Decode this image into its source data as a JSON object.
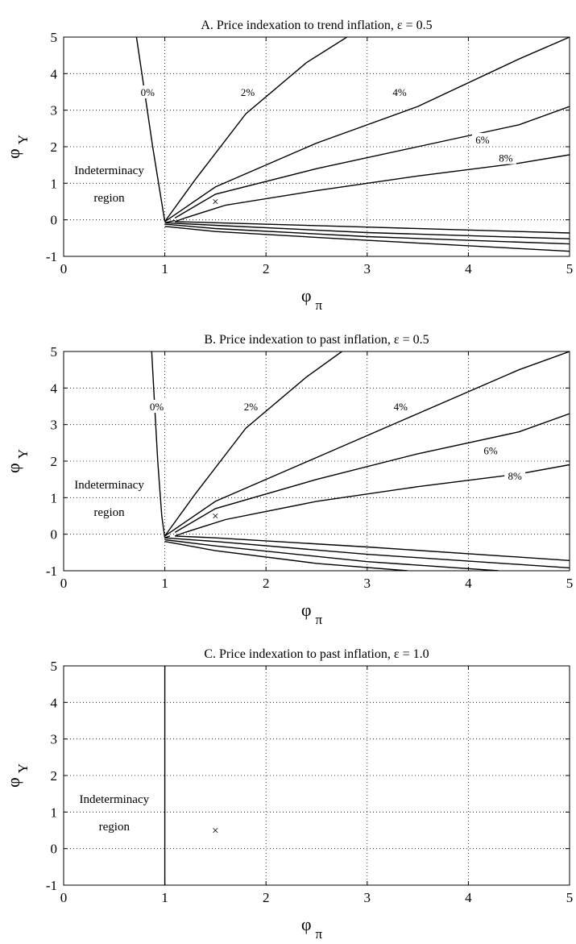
{
  "chart_data": [
    {
      "type": "line",
      "title": "A. Price indexation to trend inflation, ε = 0.5",
      "xlabel": "φ",
      "xlabel_sub": "π",
      "ylabel": "φ",
      "ylabel_sub": "Y",
      "xlim": [
        0,
        5
      ],
      "ylim": [
        -1,
        5
      ],
      "xticks": [
        "0",
        "1",
        "2",
        "3",
        "4",
        "5"
      ],
      "yticks": [
        "-1",
        "0",
        "1",
        "2",
        "3",
        "4",
        "5"
      ],
      "grid": true,
      "region_label": [
        "Indeterminacy",
        "region"
      ],
      "marker": {
        "x": 1.5,
        "y": 0.5,
        "symbol": "×"
      },
      "series": [
        {
          "label": "0%",
          "x": [
            0.72,
            0.8,
            0.88,
            0.95,
            1.0
          ],
          "y": [
            5.0,
            3.5,
            2.0,
            0.8,
            -0.05
          ],
          "label_at": [
            0.83,
            3.5
          ]
        },
        {
          "label": "2%",
          "x": [
            1.0,
            1.3,
            1.8,
            2.4,
            2.8
          ],
          "y": [
            -0.05,
            1.1,
            2.9,
            4.3,
            5.0
          ],
          "label_at": [
            1.82,
            3.5
          ]
        },
        {
          "label": "4%",
          "x": [
            1.0,
            1.5,
            2.5,
            3.5,
            4.5,
            5.0
          ],
          "y": [
            -0.05,
            0.9,
            2.1,
            3.1,
            4.4,
            5.0
          ],
          "label_at": [
            3.32,
            3.5
          ]
        },
        {
          "label": "6%",
          "x": [
            1.1,
            1.5,
            2.5,
            3.5,
            4.5,
            5.0
          ],
          "y": [
            0.05,
            0.7,
            1.4,
            2.0,
            2.6,
            3.1
          ],
          "label_at": [
            4.14,
            2.2
          ]
        },
        {
          "label": "8%",
          "x": [
            1.2,
            1.6,
            2.5,
            3.5,
            4.5,
            5.0
          ],
          "y": [
            0.05,
            0.4,
            0.8,
            1.2,
            1.55,
            1.78
          ],
          "label_at": [
            4.37,
            1.7
          ]
        },
        {
          "label": "",
          "x": [
            1.2,
            1.1,
            1.5,
            3.0,
            5.0
          ],
          "y": [
            0.05,
            -0.05,
            -0.08,
            -0.2,
            -0.36
          ],
          "label_at": null
        },
        {
          "label": "",
          "x": [
            1.1,
            1.0,
            1.5,
            3.0,
            5.0
          ],
          "y": [
            -0.02,
            -0.08,
            -0.15,
            -0.35,
            -0.52
          ],
          "label_at": null
        },
        {
          "label": "",
          "x": [
            1.0,
            1.5,
            3.0,
            5.0
          ],
          "y": [
            -0.12,
            -0.24,
            -0.46,
            -0.66
          ],
          "label_at": null
        },
        {
          "label": "",
          "x": [
            1.0,
            1.5,
            3.0,
            5.0
          ],
          "y": [
            -0.18,
            -0.32,
            -0.56,
            -0.86
          ],
          "label_at": null
        }
      ]
    },
    {
      "type": "line",
      "title": "B. Price indexation to past inflation, ε = 0.5",
      "xlabel": "φ",
      "xlabel_sub": "π",
      "ylabel": "φ",
      "ylabel_sub": "Y",
      "xlim": [
        0,
        5
      ],
      "ylim": [
        -1,
        5
      ],
      "xticks": [
        "0",
        "1",
        "2",
        "3",
        "4",
        "5"
      ],
      "yticks": [
        "-1",
        "0",
        "1",
        "2",
        "3",
        "4",
        "5"
      ],
      "grid": true,
      "region_label": [
        "Indeterminacy",
        "region"
      ],
      "marker": {
        "x": 1.5,
        "y": 0.5,
        "symbol": "×"
      },
      "series": [
        {
          "label": "0%",
          "x": [
            0.87,
            0.9,
            0.93,
            0.97,
            1.0
          ],
          "y": [
            5.0,
            3.5,
            2.0,
            0.5,
            -0.1
          ],
          "label_at": [
            0.92,
            3.5
          ]
        },
        {
          "label": "2%",
          "x": [
            1.0,
            1.3,
            1.8,
            2.4,
            2.75
          ],
          "y": [
            -0.05,
            1.1,
            2.9,
            4.3,
            5.0
          ],
          "label_at": [
            1.85,
            3.5
          ]
        },
        {
          "label": "4%",
          "x": [
            1.0,
            1.5,
            2.5,
            3.5,
            4.5,
            5.0
          ],
          "y": [
            -0.05,
            0.9,
            2.1,
            3.3,
            4.5,
            5.0
          ],
          "label_at": [
            3.33,
            3.5
          ]
        },
        {
          "label": "6%",
          "x": [
            1.1,
            1.5,
            2.5,
            3.5,
            4.5,
            5.0
          ],
          "y": [
            0.05,
            0.7,
            1.5,
            2.2,
            2.8,
            3.3
          ],
          "label_at": [
            4.22,
            2.3
          ]
        },
        {
          "label": "8%",
          "x": [
            1.2,
            1.6,
            2.5,
            3.5,
            4.5,
            5.0
          ],
          "y": [
            0.05,
            0.4,
            0.9,
            1.3,
            1.65,
            1.9
          ],
          "label_at": [
            4.46,
            1.6
          ]
        },
        {
          "label": "",
          "x": [
            1.2,
            1.1,
            1.5,
            3.0,
            5.0
          ],
          "y": [
            0.05,
            -0.05,
            -0.1,
            -0.35,
            -0.72
          ],
          "label_at": null
        },
        {
          "label": "",
          "x": [
            1.05,
            1.0,
            1.5,
            3.0,
            5.0
          ],
          "y": [
            -0.05,
            -0.1,
            -0.2,
            -0.55,
            -0.92
          ],
          "label_at": null
        },
        {
          "label": "",
          "x": [
            1.0,
            1.5,
            3.0,
            4.3
          ],
          "y": [
            -0.15,
            -0.32,
            -0.75,
            -1.0
          ],
          "label_at": null
        },
        {
          "label": "",
          "x": [
            1.0,
            1.5,
            2.5,
            3.4
          ],
          "y": [
            -0.2,
            -0.45,
            -0.8,
            -1.0
          ],
          "label_at": null
        }
      ]
    },
    {
      "type": "line",
      "title": "C. Price indexation to past inflation, ε = 1.0",
      "xlabel": "φ",
      "xlabel_sub": "π",
      "ylabel": "φ",
      "ylabel_sub": "Y",
      "xlim": [
        0,
        5
      ],
      "ylim": [
        -1,
        5
      ],
      "xticks": [
        "0",
        "1",
        "2",
        "3",
        "4",
        "5"
      ],
      "yticks": [
        "-1",
        "0",
        "1",
        "2",
        "3",
        "4",
        "5"
      ],
      "grid": true,
      "region_label": [
        "Indeterminacy",
        "region"
      ],
      "marker": {
        "x": 1.5,
        "y": 0.5,
        "symbol": "×"
      },
      "series": [
        {
          "label": "",
          "x": [
            1.0,
            1.0
          ],
          "y": [
            -1.0,
            5.0
          ],
          "label_at": null
        }
      ]
    }
  ]
}
